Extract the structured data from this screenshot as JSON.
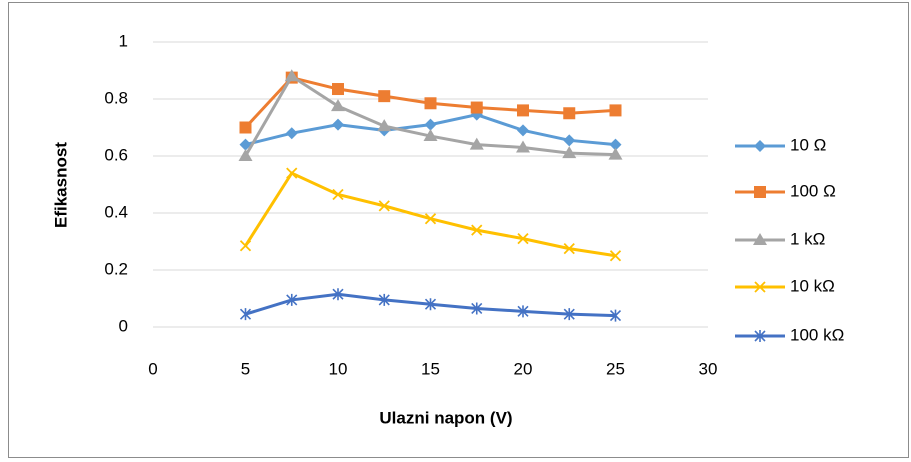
{
  "chart_data": {
    "type": "line",
    "x": [
      5,
      7.5,
      10,
      12.5,
      15,
      17.5,
      20,
      22.5,
      25
    ],
    "series": [
      {
        "name": "10 Ω",
        "color": "#5b9bd5",
        "marker": "diamond",
        "values": [
          0.64,
          0.68,
          0.71,
          0.69,
          0.71,
          0.745,
          0.69,
          0.655,
          0.64
        ]
      },
      {
        "name": "100 Ω",
        "color": "#ed7d31",
        "marker": "square",
        "values": [
          0.7,
          0.875,
          0.835,
          0.81,
          0.785,
          0.77,
          0.76,
          0.75,
          0.76
        ]
      },
      {
        "name": "1 kΩ",
        "color": "#a5a5a5",
        "marker": "triangle",
        "values": [
          0.6,
          0.88,
          0.775,
          0.705,
          0.67,
          0.64,
          0.63,
          0.61,
          0.605
        ]
      },
      {
        "name": "10 kΩ",
        "color": "#ffc000",
        "marker": "x",
        "values": [
          0.285,
          0.54,
          0.465,
          0.425,
          0.38,
          0.34,
          0.31,
          0.275,
          0.25
        ]
      },
      {
        "name": "100 kΩ",
        "color": "#4472c4",
        "marker": "star",
        "values": [
          0.045,
          0.095,
          0.115,
          0.095,
          0.08,
          0.065,
          0.055,
          0.045,
          0.04
        ]
      }
    ],
    "xlabel": "Ulazni napon (V)",
    "ylabel": "Efikasnost",
    "xlim": [
      0,
      30
    ],
    "xticks": [
      0,
      5,
      10,
      15,
      20,
      25,
      30
    ],
    "ylim": [
      0,
      1
    ],
    "yticks": [
      0,
      0.2,
      0.4,
      0.6,
      0.8,
      1
    ],
    "grid": true,
    "legend": "right"
  }
}
